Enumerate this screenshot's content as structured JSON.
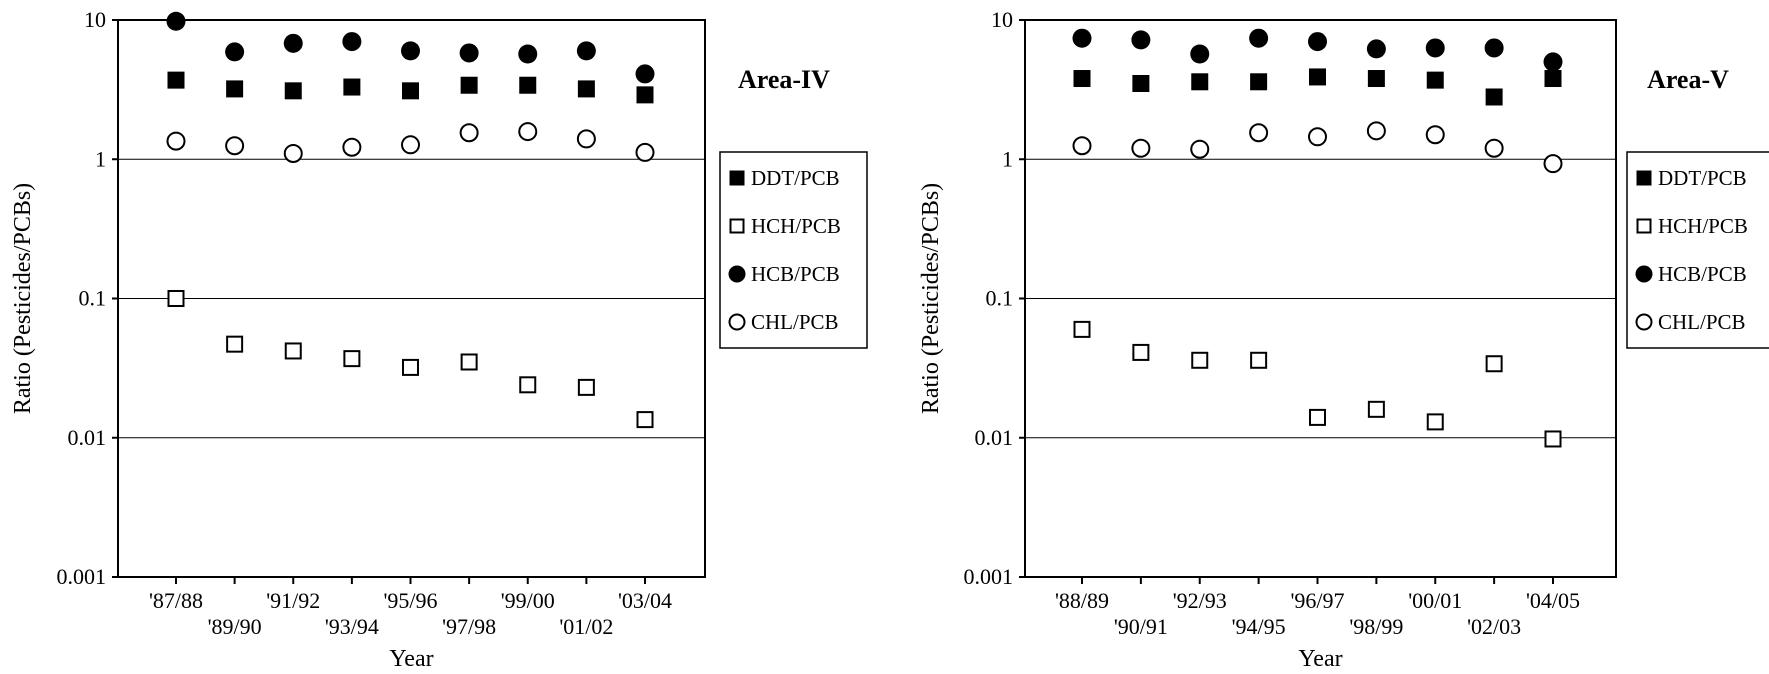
{
  "chart_data": [
    {
      "type": "scatter",
      "title": "Area-IV",
      "xlabel": "Year",
      "ylabel": "Ratio (Pesticides/PCBs)",
      "yscale": "log",
      "ylim": [
        0.001,
        10
      ],
      "y_ticks": [
        "0.001",
        "0.01",
        "0.1",
        "1",
        "10"
      ],
      "grid": "horizontal at 0.01, 0.1, 1",
      "legend_position": "right",
      "categories": [
        "'87/88",
        "'89/90",
        "'91/92",
        "'93/94",
        "'95/96",
        "'97/98",
        "'99/00",
        "'01/02",
        "'03/04"
      ],
      "series": [
        {
          "name": "DDT/PCB",
          "marker": "filled-square",
          "values": [
            3.7,
            3.2,
            3.1,
            3.3,
            3.1,
            3.4,
            3.4,
            3.2,
            2.9
          ]
        },
        {
          "name": "HCH/PCB",
          "marker": "open-square",
          "values": [
            0.1,
            0.047,
            0.042,
            0.037,
            0.032,
            0.035,
            0.024,
            0.023,
            0.0135
          ]
        },
        {
          "name": "HCB/PCB",
          "marker": "filled-circle",
          "values": [
            9.8,
            5.9,
            6.8,
            7.0,
            6.0,
            5.8,
            5.7,
            6.0,
            4.1
          ]
        },
        {
          "name": "CHL/PCB",
          "marker": "open-circle",
          "values": [
            1.35,
            1.25,
            1.1,
            1.22,
            1.27,
            1.55,
            1.58,
            1.4,
            1.12
          ]
        }
      ]
    },
    {
      "type": "scatter",
      "title": "Area-V",
      "xlabel": "Year",
      "ylabel": "Ratio (Pesticides/PCBs)",
      "yscale": "log",
      "ylim": [
        0.001,
        10
      ],
      "y_ticks": [
        "0.001",
        "0.01",
        "0.1",
        "1",
        "10"
      ],
      "grid": "horizontal at 0.01, 0.1, 1",
      "legend_position": "right",
      "categories": [
        "'88/89",
        "'90/91",
        "'92/93",
        "'94/95",
        "'96/97",
        "'98/99",
        "'00/01",
        "'02/03",
        "'04/05"
      ],
      "series": [
        {
          "name": "DDT/PCB",
          "marker": "filled-square",
          "values": [
            3.8,
            3.5,
            3.6,
            3.6,
            3.9,
            3.8,
            3.7,
            2.8,
            3.8
          ]
        },
        {
          "name": "HCH/PCB",
          "marker": "open-square",
          "values": [
            0.06,
            0.041,
            0.036,
            0.036,
            0.014,
            0.016,
            0.013,
            0.034,
            0.0098
          ]
        },
        {
          "name": "HCB/PCB",
          "marker": "filled-circle",
          "values": [
            7.4,
            7.2,
            5.7,
            7.4,
            7.0,
            6.2,
            6.3,
            6.3,
            5.0
          ]
        },
        {
          "name": "CHL/PCB",
          "marker": "open-circle",
          "values": [
            1.25,
            1.2,
            1.18,
            1.55,
            1.45,
            1.6,
            1.5,
            1.2,
            0.93
          ]
        }
      ]
    }
  ]
}
